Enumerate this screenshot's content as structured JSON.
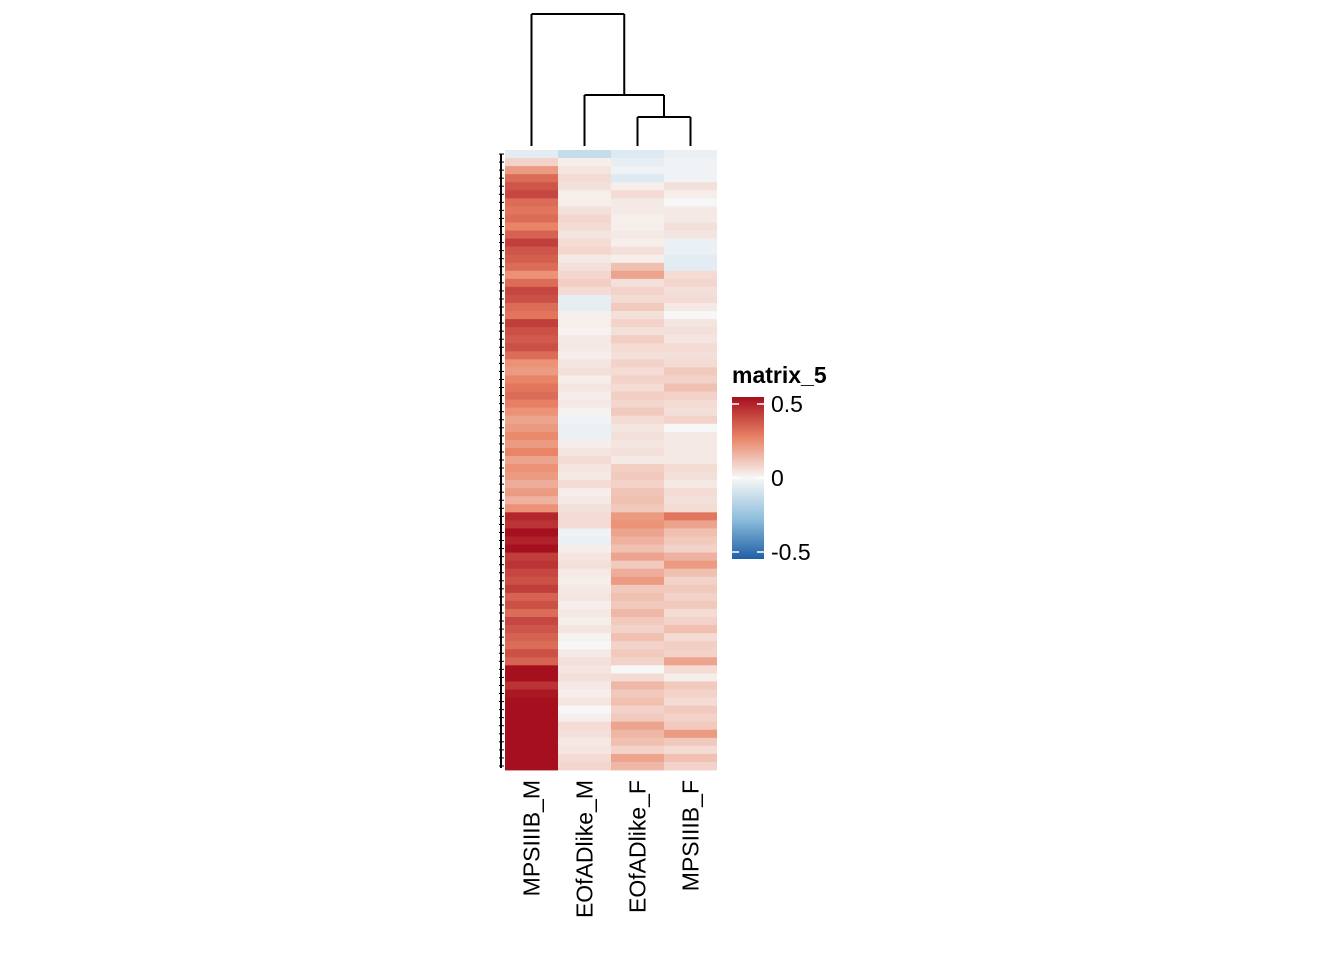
{
  "chart_data": {
    "type": "heatmap",
    "legend": {
      "title": "matrix_5",
      "ticks": [
        "0.5",
        "0",
        "-0.5"
      ],
      "range": [
        -0.5,
        0.5
      ],
      "colors": {
        "low": "#2166ac",
        "mid": "#f7f7f7",
        "high": "#b2182b"
      }
    },
    "columns": [
      "MPSIIIB_M",
      "EOfADlike_M",
      "EOfADlike_F",
      "MPSIIIB_F"
    ],
    "column_dendrogram": "((MPSIIIB_M),(EOfADlike_M,(EOfADlike_F,MPSIIIB_F)))",
    "row_dendrogram": "many collapsed leaves (very low height)",
    "rows": [
      [
        -0.05,
        -0.12,
        -0.06,
        -0.03
      ],
      [
        0.08,
        0.02,
        -0.04,
        -0.02
      ],
      [
        0.2,
        0.04,
        -0.02,
        -0.02
      ],
      [
        0.3,
        0.06,
        -0.06,
        -0.02
      ],
      [
        0.35,
        0.05,
        0.02,
        0.05
      ],
      [
        0.38,
        0.02,
        0.06,
        0.02
      ],
      [
        0.3,
        0.02,
        0.03,
        0.0
      ],
      [
        0.28,
        0.05,
        0.03,
        0.03
      ],
      [
        0.3,
        0.07,
        0.02,
        0.03
      ],
      [
        0.25,
        0.06,
        0.02,
        0.05
      ],
      [
        0.32,
        0.04,
        0.03,
        0.04
      ],
      [
        0.4,
        0.06,
        0.02,
        -0.03
      ],
      [
        0.35,
        0.07,
        0.05,
        -0.03
      ],
      [
        0.33,
        0.03,
        0.02,
        -0.05
      ],
      [
        0.3,
        0.05,
        0.12,
        -0.05
      ],
      [
        0.22,
        0.07,
        0.18,
        0.06
      ],
      [
        0.3,
        0.09,
        0.05,
        0.07
      ],
      [
        0.38,
        0.06,
        0.08,
        0.05
      ],
      [
        0.36,
        -0.04,
        0.06,
        0.06
      ],
      [
        0.3,
        -0.04,
        0.1,
        0.03
      ],
      [
        0.28,
        0.02,
        0.05,
        0.0
      ],
      [
        0.4,
        0.02,
        0.08,
        0.04
      ],
      [
        0.36,
        0.01,
        0.05,
        0.05
      ],
      [
        0.34,
        0.03,
        0.09,
        0.04
      ],
      [
        0.36,
        0.03,
        0.06,
        0.06
      ],
      [
        0.3,
        0.02,
        0.05,
        0.05
      ],
      [
        0.22,
        0.04,
        0.08,
        0.06
      ],
      [
        0.2,
        0.05,
        0.06,
        0.1
      ],
      [
        0.25,
        0.02,
        0.08,
        0.08
      ],
      [
        0.28,
        0.04,
        0.06,
        0.12
      ],
      [
        0.3,
        0.02,
        0.09,
        0.08
      ],
      [
        0.26,
        0.03,
        0.07,
        0.06
      ],
      [
        0.22,
        0.01,
        0.1,
        0.05
      ],
      [
        0.18,
        -0.02,
        0.06,
        0.08
      ],
      [
        0.2,
        -0.03,
        0.04,
        0.0
      ],
      [
        0.24,
        -0.03,
        0.05,
        0.03
      ],
      [
        0.2,
        0.02,
        0.04,
        0.03
      ],
      [
        0.25,
        0.04,
        0.05,
        0.03
      ],
      [
        0.18,
        0.06,
        0.03,
        0.03
      ],
      [
        0.22,
        0.04,
        0.09,
        0.06
      ],
      [
        0.2,
        0.03,
        0.1,
        0.05
      ],
      [
        0.16,
        0.06,
        0.08,
        0.03
      ],
      [
        0.2,
        0.02,
        0.11,
        0.06
      ],
      [
        0.15,
        0.03,
        0.12,
        0.05
      ],
      [
        0.22,
        0.05,
        0.1,
        0.06
      ],
      [
        0.45,
        0.06,
        0.2,
        0.28
      ],
      [
        0.42,
        0.06,
        0.22,
        0.18
      ],
      [
        0.5,
        -0.02,
        0.18,
        0.12
      ],
      [
        0.46,
        -0.03,
        0.15,
        0.1
      ],
      [
        0.52,
        0.02,
        0.12,
        0.08
      ],
      [
        0.4,
        0.04,
        0.18,
        0.15
      ],
      [
        0.42,
        0.05,
        0.1,
        0.2
      ],
      [
        0.38,
        0.03,
        0.16,
        0.12
      ],
      [
        0.36,
        0.02,
        0.2,
        0.08
      ],
      [
        0.4,
        0.03,
        0.1,
        0.1
      ],
      [
        0.32,
        0.04,
        0.12,
        0.08
      ],
      [
        0.36,
        0.02,
        0.1,
        0.1
      ],
      [
        0.3,
        0.03,
        0.14,
        0.06
      ],
      [
        0.38,
        0.02,
        0.1,
        0.08
      ],
      [
        0.35,
        0.04,
        0.08,
        0.12
      ],
      [
        0.32,
        0.01,
        0.12,
        0.06
      ],
      [
        0.3,
        0.0,
        0.08,
        0.09
      ],
      [
        0.36,
        0.03,
        0.1,
        0.08
      ],
      [
        0.32,
        0.05,
        0.08,
        0.18
      ],
      [
        0.62,
        0.04,
        0.0,
        0.06
      ],
      [
        0.55,
        0.05,
        0.06,
        0.02
      ],
      [
        0.42,
        0.03,
        0.14,
        0.1
      ],
      [
        0.48,
        0.02,
        0.1,
        0.08
      ],
      [
        0.5,
        0.04,
        0.12,
        0.06
      ],
      [
        0.52,
        0.0,
        0.08,
        0.1
      ],
      [
        0.55,
        0.02,
        0.1,
        0.08
      ],
      [
        0.65,
        0.06,
        0.18,
        0.1
      ],
      [
        0.68,
        0.05,
        0.14,
        0.2
      ],
      [
        0.6,
        0.03,
        0.12,
        0.1
      ],
      [
        0.62,
        0.04,
        0.08,
        0.06
      ],
      [
        0.56,
        0.06,
        0.18,
        0.12
      ],
      [
        0.5,
        0.07,
        0.14,
        0.08
      ]
    ]
  }
}
